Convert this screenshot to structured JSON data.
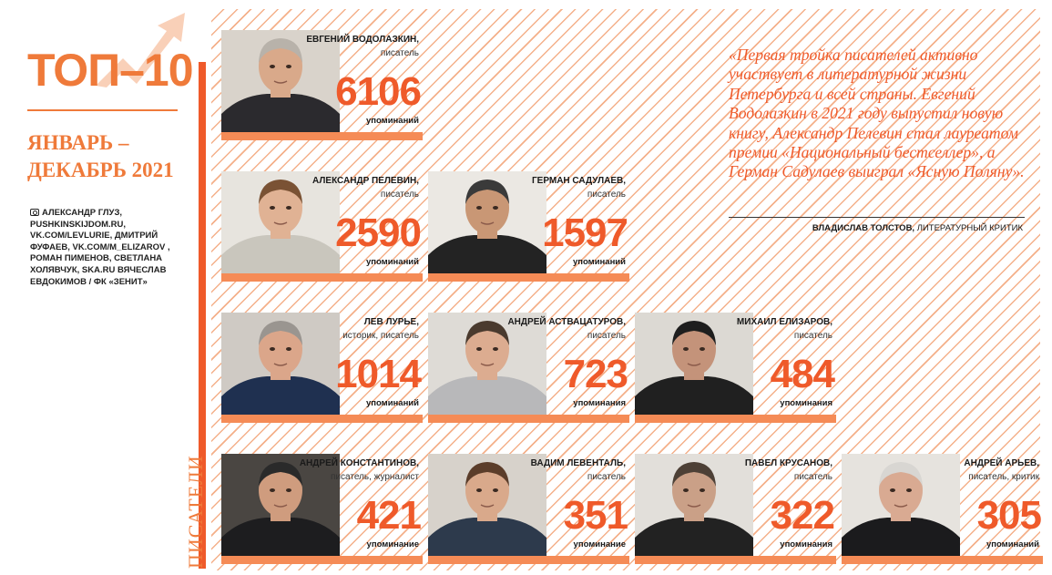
{
  "header": {
    "title": "ТОП–10",
    "period": "ЯНВАРЬ – ДЕКАБРЬ 2021",
    "category": "ПИСАТЕЛИ",
    "credits": "АЛЕКСАНДР ГЛУЗ, PUSHKINSKIJDOM.RU, VK.COM/LEVLURIE, ДМИТРИЙ ФУФАЕВ, VK.COM/M_ELIZAROV , РОМАН ПИМЕНОВ, СВЕТЛАНА ХОЛЯВЧУК, SKA.RU ВЯЧЕСЛАВ ЕВДОКИМОВ / ФК «ЗЕНИТ»",
    "credits_icon": "camera-icon"
  },
  "colors": {
    "accent": "#ef5a2a",
    "accent_light": "#f58b56",
    "title": "#ef7a3a",
    "hatch": "#f4b08a"
  },
  "writers": [
    {
      "name": "ЕВГЕНИЙ ВОДОЛАЗКИН,",
      "role": "писатель",
      "count": "6106",
      "label": "упоминаний",
      "palette": {
        "bg": "#d9d3cb",
        "skin": "#d9a98a",
        "hair": "#b8b2aa",
        "cloth": "#2b2a2e"
      }
    },
    {
      "name": "АЛЕКСАНДР ПЕЛЕВИН,",
      "role": "писатель",
      "count": "2590",
      "label": "упоминаний",
      "palette": {
        "bg": "#e7e4de",
        "skin": "#e0b294",
        "hair": "#7a5234",
        "cloth": "#c9c6bd"
      }
    },
    {
      "name": "ГЕРМАН САДУЛАЕВ,",
      "role": "писатель",
      "count": "1597",
      "label": "упоминаний",
      "palette": {
        "bg": "#ebe8e3",
        "skin": "#c99775",
        "hair": "#3a3a3a",
        "cloth": "#232323"
      }
    },
    {
      "name": "ЛЕВ ЛУРЬЕ,",
      "role": "историк, писатель",
      "count": "1014",
      "label": "упоминаний",
      "palette": {
        "bg": "#cfcac4",
        "skin": "#dba68a",
        "hair": "#9a9590",
        "cloth": "#1f3050"
      }
    },
    {
      "name": "АНДРЕЙ АСТВАЦАТУРОВ,",
      "role": "писатель",
      "count": "723",
      "label": "упоминания",
      "palette": {
        "bg": "#dedbd6",
        "skin": "#dcac90",
        "hair": "#4a3a2e",
        "cloth": "#b8b8ba"
      }
    },
    {
      "name": "МИХАИЛ ЕЛИЗАРОВ,",
      "role": "писатель",
      "count": "484",
      "label": "упоминания",
      "palette": {
        "bg": "#dcd9d3",
        "skin": "#c4937a",
        "hair": "#1e1e1e",
        "cloth": "#202020"
      }
    },
    {
      "name": "АНДРЕЙ КОНСТАНТИНОВ,",
      "role": "писатель, журналист",
      "count": "421",
      "label": "упоминание",
      "palette": {
        "bg": "#4a4642",
        "skin": "#cf9c7e",
        "hair": "#2a2a2a",
        "cloth": "#1d1d1f"
      }
    },
    {
      "name": "ВАДИМ ЛЕВЕНТАЛЬ,",
      "role": "писатель",
      "count": "351",
      "label": "упоминание",
      "palette": {
        "bg": "#d7d2cb",
        "skin": "#d9a98b",
        "hair": "#5b3d2a",
        "cloth": "#2d3a4c"
      }
    },
    {
      "name": "ПАВЕЛ КРУСАНОВ,",
      "role": "писатель",
      "count": "322",
      "label": "упоминания",
      "palette": {
        "bg": "#e2dfda",
        "skin": "#caa087",
        "hair": "#4d4036",
        "cloth": "#222222"
      }
    },
    {
      "name": "АНДРЕЙ АРЬЕВ,",
      "role": "писатель, критик",
      "count": "305",
      "label": "упоминаний",
      "palette": {
        "bg": "#e6e3de",
        "skin": "#d9aa92",
        "hair": "#d8d6d2",
        "cloth": "#1b1b1d"
      }
    }
  ],
  "quote": {
    "text": "«Первая тройка писателей активно участвует в литературной жизни Петербурга и всей страны. Евгений Водолазкин в 2021 году выпустил новую книгу, Александр Пелевин стал лауреатом премии «Национальный бестселлер», а Герман Садулаев выиграл «Ясную Поляну».",
    "author": "ВЛАДИСЛАВ ТОЛСТОВ,",
    "author_role": "ЛИТЕРАТУРНЫЙ КРИТИК"
  }
}
